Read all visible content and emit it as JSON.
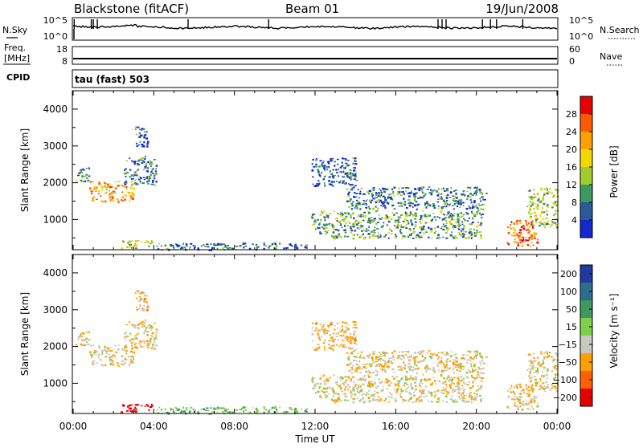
{
  "header": {
    "title": "Blackstone (fitACF)",
    "beam": "Beam 01",
    "date": "19/Jun/2008"
  },
  "noise_panel": {
    "left_label": "N.Sky",
    "right_label": "N.Search",
    "left_ticks": [
      "10^5",
      "10^0"
    ],
    "right_ticks": [
      "10^5",
      "10^0"
    ]
  },
  "freq_panel": {
    "left_label_1": "Freq.",
    "left_label_2": "[MHz]",
    "right_label": "Nave",
    "left_ticks": [
      "18",
      "8"
    ],
    "right_ticks": [
      "60",
      "0"
    ]
  },
  "cpid_panel": {
    "label": "CPID",
    "mode_text": "tau (fast) 503"
  },
  "power_panel": {
    "ylabel": "Slant Range [km]",
    "yticks": [
      "4000",
      "3000",
      "2000",
      "1000"
    ],
    "colorbar_label": "Power [dB]",
    "colorbar_ticks": [
      "28",
      "24",
      "20",
      "16",
      "12",
      "8",
      "4"
    ],
    "colorbar_colors": [
      "#e80000",
      "#ff5a00",
      "#ffa000",
      "#f0d800",
      "#a0cc30",
      "#3c9a5e",
      "#2a5a9a",
      "#1428d0"
    ]
  },
  "velocity_panel": {
    "ylabel": "Slant Range [km]",
    "yticks": [
      "4000",
      "3000",
      "2000",
      "1000"
    ],
    "colorbar_label": "Velocity [m s⁻¹]",
    "colorbar_ticks": [
      "200",
      "100",
      "50",
      "15",
      "−15",
      "−50",
      "−100",
      "−200"
    ],
    "colorbar_colors": [
      "#1f3aa0",
      "#2a6e8e",
      "#3c9a5e",
      "#7ed04a",
      "#c8c8c0",
      "#ffa000",
      "#ff6000",
      "#e80000"
    ]
  },
  "x_axis": {
    "ticks": [
      "00:00",
      "04:00",
      "08:00",
      "12:00",
      "16:00",
      "20:00",
      "00:00"
    ],
    "label": "Time UT"
  },
  "chart_data": {
    "type": "heatmap",
    "title": "Blackstone (fitACF)",
    "subtitle": "Beam 01",
    "date": "19/Jun/2008",
    "xlabel": "Time UT",
    "ylabel": "Slant Range [km]",
    "xlim_hours": [
      0,
      24
    ],
    "ylim_km": [
      180,
      4500
    ],
    "time_ticks_hours": [
      0,
      4,
      8,
      12,
      16,
      20,
      24
    ],
    "range_ticks_km": [
      1000,
      2000,
      3000,
      4000
    ],
    "power_scale_db": [
      0,
      30
    ],
    "velocity_scale_ms": [
      -250,
      250
    ],
    "echo_regions": [
      {
        "t": [
          0.1,
          0.8
        ],
        "r": [
          2050,
          2450
        ],
        "power_db": 9,
        "velocity_ms": -10
      },
      {
        "t": [
          0.8,
          3.0
        ],
        "r": [
          1500,
          2050
        ],
        "power_db": 20,
        "velocity_ms": -12
      },
      {
        "t": [
          2.5,
          4.1
        ],
        "r": [
          1950,
          2750
        ],
        "power_db": 7,
        "velocity_ms": -10
      },
      {
        "t": [
          3.0,
          3.7
        ],
        "r": [
          3000,
          3550
        ],
        "power_db": 6,
        "velocity_ms": -20
      },
      {
        "t": [
          2.2,
          3.9
        ],
        "r": [
          230,
          450
        ],
        "power_db": 14,
        "velocity_ms": -150
      },
      {
        "t": [
          4.0,
          11.8
        ],
        "r": [
          190,
          380
        ],
        "power_db": 6,
        "velocity_ms": 40
      },
      {
        "t": [
          11.8,
          20.3
        ],
        "r": [
          500,
          1250
        ],
        "power_db": 10,
        "velocity_ms": -8
      },
      {
        "t": [
          13.5,
          20.5
        ],
        "r": [
          1300,
          1900
        ],
        "power_db": 7,
        "velocity_ms": -12
      },
      {
        "t": [
          11.8,
          14.0
        ],
        "r": [
          1900,
          2700
        ],
        "power_db": 5,
        "velocity_ms": -20
      },
      {
        "t": [
          21.5,
          23.0
        ],
        "r": [
          300,
          1000
        ],
        "power_db": 24,
        "velocity_ms": -15
      },
      {
        "t": [
          22.5,
          24.0
        ],
        "r": [
          800,
          1900
        ],
        "power_db": 14,
        "velocity_ms": -12
      }
    ]
  }
}
